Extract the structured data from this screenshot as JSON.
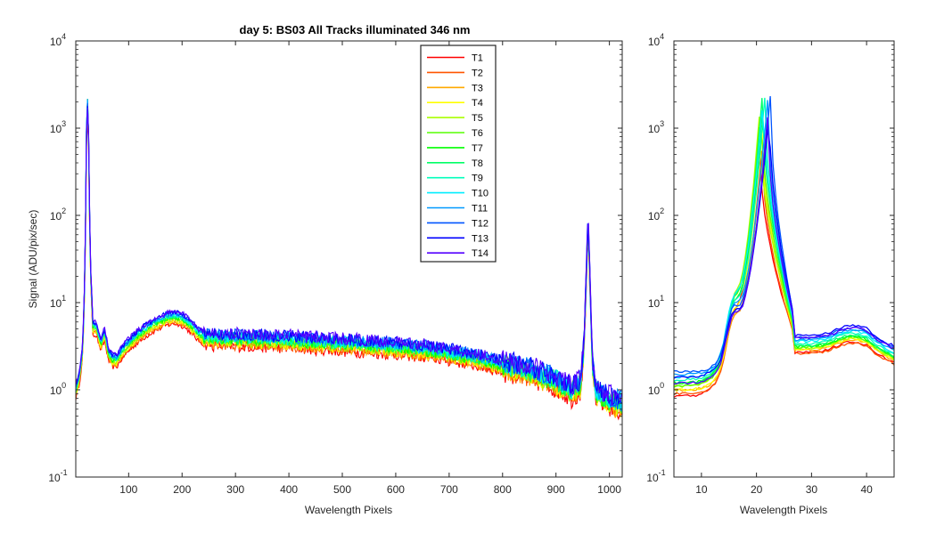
{
  "figure_title": "day 5: BS03   All Tracks illuminated   346 nm",
  "chart_data": [
    {
      "type": "line",
      "title": "day 5: BS03   All Tracks illuminated   346 nm",
      "xlabel": "Wavelength Pixels",
      "ylabel": "Signal (ADU/pix/sec)",
      "xlim": [
        1,
        1024
      ],
      "ylim": [
        0.1,
        10000
      ],
      "yscale": "log",
      "xticks": [
        "100",
        "200",
        "300",
        "400",
        "500",
        "600",
        "700",
        "800",
        "900",
        "1000"
      ],
      "yticks": [
        "10^-1",
        "10^0",
        "10^1",
        "10^2",
        "10^3",
        "10^4"
      ],
      "grid": false,
      "legend_placement": "top-center",
      "profile": {
        "x": [
          1,
          8,
          14,
          18,
          21,
          24,
          28,
          33,
          40,
          48,
          55,
          62,
          70,
          78,
          90,
          110,
          130,
          150,
          170,
          185,
          200,
          215,
          230,
          240,
          260,
          300,
          400,
          500,
          600,
          650,
          700,
          750,
          800,
          850,
          900,
          930,
          945,
          952,
          957,
          960,
          963,
          968,
          975,
          990,
          1010,
          1024
        ],
        "y": [
          1.0,
          1.5,
          3.0,
          20,
          600,
          2300,
          30,
          5.5,
          5.2,
          3.5,
          4.6,
          2.7,
          2.3,
          2.3,
          3.0,
          4.0,
          5.0,
          6.0,
          6.8,
          7.2,
          6.8,
          5.8,
          4.6,
          4.2,
          4.0,
          4.0,
          3.8,
          3.5,
          3.2,
          3.0,
          2.7,
          2.4,
          2.0,
          1.7,
          1.3,
          1.0,
          1.2,
          3.0,
          25,
          95,
          25,
          2.0,
          1.0,
          0.85,
          0.75,
          0.7
        ]
      },
      "series": [
        {
          "name": "T1",
          "color": "#ff0000",
          "scale": 0.8,
          "peak": 1500
        },
        {
          "name": "T2",
          "color": "#ff5500",
          "scale": 0.83,
          "peak": 1700
        },
        {
          "name": "T3",
          "color": "#ffaa00",
          "scale": 0.86,
          "peak": 1900
        },
        {
          "name": "T4",
          "color": "#ffff00",
          "scale": 0.88,
          "peak": 2000
        },
        {
          "name": "T5",
          "color": "#aaff00",
          "scale": 0.91,
          "peak": 2100
        },
        {
          "name": "T6",
          "color": "#55ff00",
          "scale": 0.94,
          "peak": 2200
        },
        {
          "name": "T7",
          "color": "#00ff00",
          "scale": 0.96,
          "peak": 2250
        },
        {
          "name": "T8",
          "color": "#00ff66",
          "scale": 0.98,
          "peak": 2300
        },
        {
          "name": "T9",
          "color": "#00ffbb",
          "scale": 1.0,
          "peak": 2300
        },
        {
          "name": "T10",
          "color": "#00eeff",
          "scale": 1.02,
          "peak": 2350
        },
        {
          "name": "T11",
          "color": "#0099ff",
          "scale": 1.05,
          "peak": 2300
        },
        {
          "name": "T12",
          "color": "#0055ff",
          "scale": 1.07,
          "peak": 2200
        },
        {
          "name": "T13",
          "color": "#0000ff",
          "scale": 1.09,
          "peak": 2100
        },
        {
          "name": "T14",
          "color": "#5500ff",
          "scale": 1.11,
          "peak": 1600
        }
      ]
    },
    {
      "type": "line",
      "xlabel": "Wavelength Pixels",
      "xlim": [
        5,
        45
      ],
      "ylim": [
        0.1,
        10000
      ],
      "yscale": "log",
      "xticks": [
        "10",
        "20",
        "30",
        "40"
      ],
      "yticks": [
        "10^-1",
        "10^0",
        "10^1",
        "10^2",
        "10^3",
        "10^4"
      ],
      "grid": false,
      "series": [
        {
          "name": "T1",
          "color": "#ff0000",
          "center": 20.5,
          "peak": 650,
          "base": 0.85,
          "tail": 3.6
        },
        {
          "name": "T2",
          "color": "#ff5500",
          "center": 21.0,
          "peak": 550,
          "base": 0.9,
          "tail": 3.5
        },
        {
          "name": "T3",
          "color": "#ffaa00",
          "center": 21.3,
          "peak": 700,
          "base": 1.0,
          "tail": 3.8
        },
        {
          "name": "T4",
          "color": "#ffff00",
          "center": 21.0,
          "peak": 900,
          "base": 1.0,
          "tail": 3.9
        },
        {
          "name": "T5",
          "color": "#aaff00",
          "center": 20.5,
          "peak": 1400,
          "base": 1.1,
          "tail": 4.0
        },
        {
          "name": "T6",
          "color": "#55ff00",
          "center": 20.8,
          "peak": 1800,
          "base": 1.1,
          "tail": 4.1
        },
        {
          "name": "T7",
          "color": "#00ff00",
          "center": 21.2,
          "peak": 2000,
          "base": 1.2,
          "tail": 4.2
        },
        {
          "name": "T8",
          "color": "#00ff66",
          "center": 21.0,
          "peak": 2200,
          "base": 1.2,
          "tail": 4.3
        },
        {
          "name": "T9",
          "color": "#00ffbb",
          "center": 21.5,
          "peak": 2300,
          "base": 1.3,
          "tail": 4.5
        },
        {
          "name": "T10",
          "color": "#00eeff",
          "center": 21.2,
          "peak": 2350,
          "base": 1.4,
          "tail": 4.8
        },
        {
          "name": "T11",
          "color": "#0099ff",
          "center": 22.0,
          "peak": 2100,
          "base": 1.5,
          "tail": 5.0
        },
        {
          "name": "T12",
          "color": "#0055ff",
          "center": 22.5,
          "peak": 2300,
          "base": 1.6,
          "tail": 5.3
        },
        {
          "name": "T13",
          "color": "#0000ff",
          "center": 22.3,
          "peak": 1600,
          "base": 1.4,
          "tail": 5.6
        },
        {
          "name": "T14",
          "color": "#5500ff",
          "center": 22.0,
          "peak": 1300,
          "base": 1.2,
          "tail": 5.2
        }
      ]
    }
  ]
}
